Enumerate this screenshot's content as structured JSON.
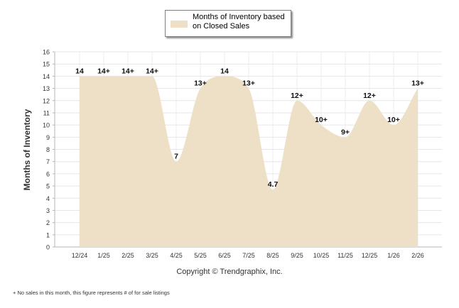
{
  "chart_data": {
    "type": "area",
    "title": "",
    "xlabel": "",
    "ylabel": "Months of Inventory",
    "ylim": [
      0,
      16
    ],
    "yticks": [
      0,
      1,
      2,
      3,
      4,
      5,
      6,
      7,
      8,
      9,
      10,
      11,
      12,
      13,
      14,
      15,
      16
    ],
    "categories": [
      "12/24",
      "1/25",
      "2/25",
      "3/25",
      "4/25",
      "5/25",
      "6/25",
      "7/25",
      "8/25",
      "9/25",
      "10/25",
      "11/25",
      "12/25",
      "1/26",
      "2/26"
    ],
    "series": [
      {
        "name": "Months of Inventory based on Closed Sales",
        "values": [
          14,
          14,
          14,
          14,
          7,
          13,
          14,
          13,
          4.7,
          12,
          10,
          9,
          12,
          10,
          13
        ],
        "labels": [
          "14",
          "14+",
          "14+",
          "14+",
          "7",
          "13+",
          "14",
          "13+",
          "4.7",
          "12+",
          "10+",
          "9+",
          "12+",
          "10+",
          "13+"
        ],
        "color": "#ede0c6"
      }
    ],
    "grid": true,
    "legend_position": "top-center"
  },
  "legend": {
    "label": "Months of Inventory based on Closed Sales"
  },
  "copyright": "Copyright © Trendgraphix, Inc.",
  "footnote": "+  No sales in this month, this figure represents # of for sale listings"
}
